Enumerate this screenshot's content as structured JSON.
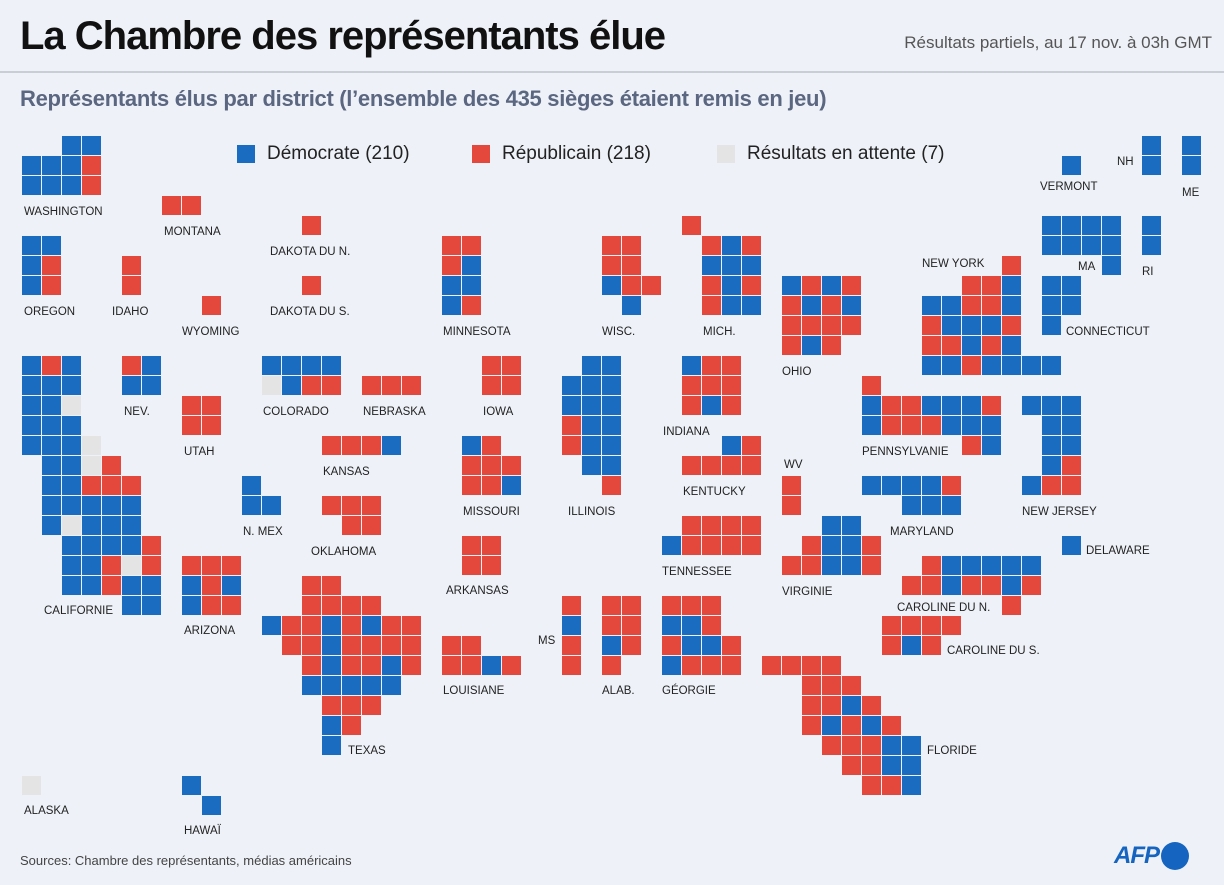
{
  "header": {
    "title": "La Chambre des représentants élue",
    "note": "Résultats partiels, au 17 nov. à 03h GMT",
    "subtitle": "Représentants élus par district (l’ensemble des 435 sièges étaient remis en jeu)"
  },
  "colors": {
    "D": "#1a6cc0",
    "R": "#e4483c",
    "P": "#e4e4e4",
    "background": "#eef2f8"
  },
  "legend": [
    {
      "key": "D",
      "label": "Démocrate (210)"
    },
    {
      "key": "R",
      "label": "Républicain (218)"
    },
    {
      "key": "P",
      "label": "Résultats en attente (7)"
    }
  ],
  "states": {
    "WA": {
      "label": "WASHINGTON",
      "seats": "DDDDDRDDDR"
    },
    "MT": {
      "label": "MONTANA",
      "seats": "RR"
    },
    "ND": {
      "label": "DAKOTA DU N.",
      "seats": "R"
    },
    "SD": {
      "label": "DAKOTA DU S.",
      "seats": "R"
    },
    "OR": {
      "label": "OREGON",
      "seats": "DDDRDR"
    },
    "ID": {
      "label": "IDAHO",
      "seats": "RR"
    },
    "WY": {
      "label": "WYOMING",
      "seats": "R"
    },
    "CA": {
      "label": "CALIFORNIE",
      "seats": "DRDDDDDDPDDDDDDPDDPRDDRRRDDDDDDPDDDDDDDRDDRPRDDRDDDD"
    },
    "NV": {
      "label": "NEV.",
      "seats": "RDDD"
    },
    "UT": {
      "label": "UTAH",
      "seats": "RRRR"
    },
    "AZ": {
      "label": "ARIZONA",
      "seats": "RRRDRDDRR"
    },
    "NM": {
      "label": "N. MEX",
      "seats": "DDD"
    },
    "CO": {
      "label": "COLORADO",
      "seats": "DDDDPDRR"
    },
    "NE": {
      "label": "NEBRASKA",
      "seats": "RRR"
    },
    "KS": {
      "label": "KANSAS",
      "seats": "RRRD"
    },
    "OK": {
      "label": "OKLAHOMA",
      "seats": "RRRRR"
    },
    "TX": {
      "label": "TEXAS",
      "seats": "RRRRRRDRRDRDRRRRDRRRRRDRRDRDDDDDRRRDRD"
    },
    "IA": {
      "label": "IOWA",
      "seats": "RRRR"
    },
    "MO": {
      "label": "MISSOURI",
      "seats": "DRRRRRRD"
    },
    "AR": {
      "label": "ARKANSAS",
      "seats": "RRRR"
    },
    "LA": {
      "label": "LOUISIANE",
      "seats": "RRRRDR"
    },
    "MN": {
      "label": "MINNESOTA",
      "seats": "RRRDDDDR"
    },
    "WI": {
      "label": "WISC.",
      "seats": "RRRRDRRD"
    },
    "MI": {
      "label": "MICH.",
      "seats": "RRDRDDDRDRRDD"
    },
    "IL": {
      "label": "ILLINOIS",
      "seats": "DDDDDDDDRDDRDDDDR"
    },
    "IN": {
      "label": "INDIANA",
      "seats": "DRRRRRRDR"
    },
    "KY": {
      "label": "KENTUCKY",
      "seats": "DRRRRR"
    },
    "TN": {
      "label": "TENNESSEE",
      "seats": "RRRRDRRRR"
    },
    "MS": {
      "label": "MS",
      "seats": "RDRR"
    },
    "AL": {
      "label": "ALAB.",
      "seats": "RRRRDRR"
    },
    "GA": {
      "label": "GÉORGIE",
      "seats": "RRRDDRRDDRDRRR"
    },
    "FL": {
      "label": "FLORIDE",
      "seats": "RRRRRRRRRDRRDRDRRRRDDRRDDRRD"
    },
    "OH": {
      "label": "OHIO",
      "seats": "DRDRRDRDRRRRRDR"
    },
    "WV": {
      "label": "WV",
      "seats": "RR"
    },
    "VA": {
      "label": "VIRGINIE",
      "seats": "DDRDDRRRDDR"
    },
    "NC": {
      "label": "CAROLINE DU N.",
      "seats": "RDDDDDRRDRRDRR"
    },
    "SC": {
      "label": "CAROLINE DU S.",
      "seats": "RRRRRDR"
    },
    "PA": {
      "label": "PENNSYLVANIE",
      "seats": "RDRRDDDRDRRRDDDRD"
    },
    "MD": {
      "label": "MARYLAND",
      "seats": "DDDDRDDD"
    },
    "DE": {
      "label": "DELAWARE",
      "seats": "D"
    },
    "NJ": {
      "label": "NEW JERSEY",
      "seats": "DDDDDDDDRDRR"
    },
    "NY": {
      "label": "NEW YORK",
      "seats": "RRRDDDRRDRDDDRRRDRDDDRDDDD"
    },
    "CT": {
      "label": "CONNECTICUT",
      "seats": "DDDDD"
    },
    "MA": {
      "label": "MA",
      "seats": "DDDDDDDDD"
    },
    "RI": {
      "label": "RI",
      "seats": "DD"
    },
    "VT": {
      "label": "VERMONT",
      "seats": "D"
    },
    "NH": {
      "label": "NH",
      "seats": "DD"
    },
    "ME": {
      "label": "ME",
      "seats": "DD"
    },
    "AK": {
      "label": "ALASKA",
      "seats": "P"
    },
    "HI": {
      "label": "HAWAÏ",
      "seats": "DD"
    }
  },
  "footer": {
    "sources": "Sources: Chambre des représentants, médias américains",
    "logo": "AFP"
  }
}
